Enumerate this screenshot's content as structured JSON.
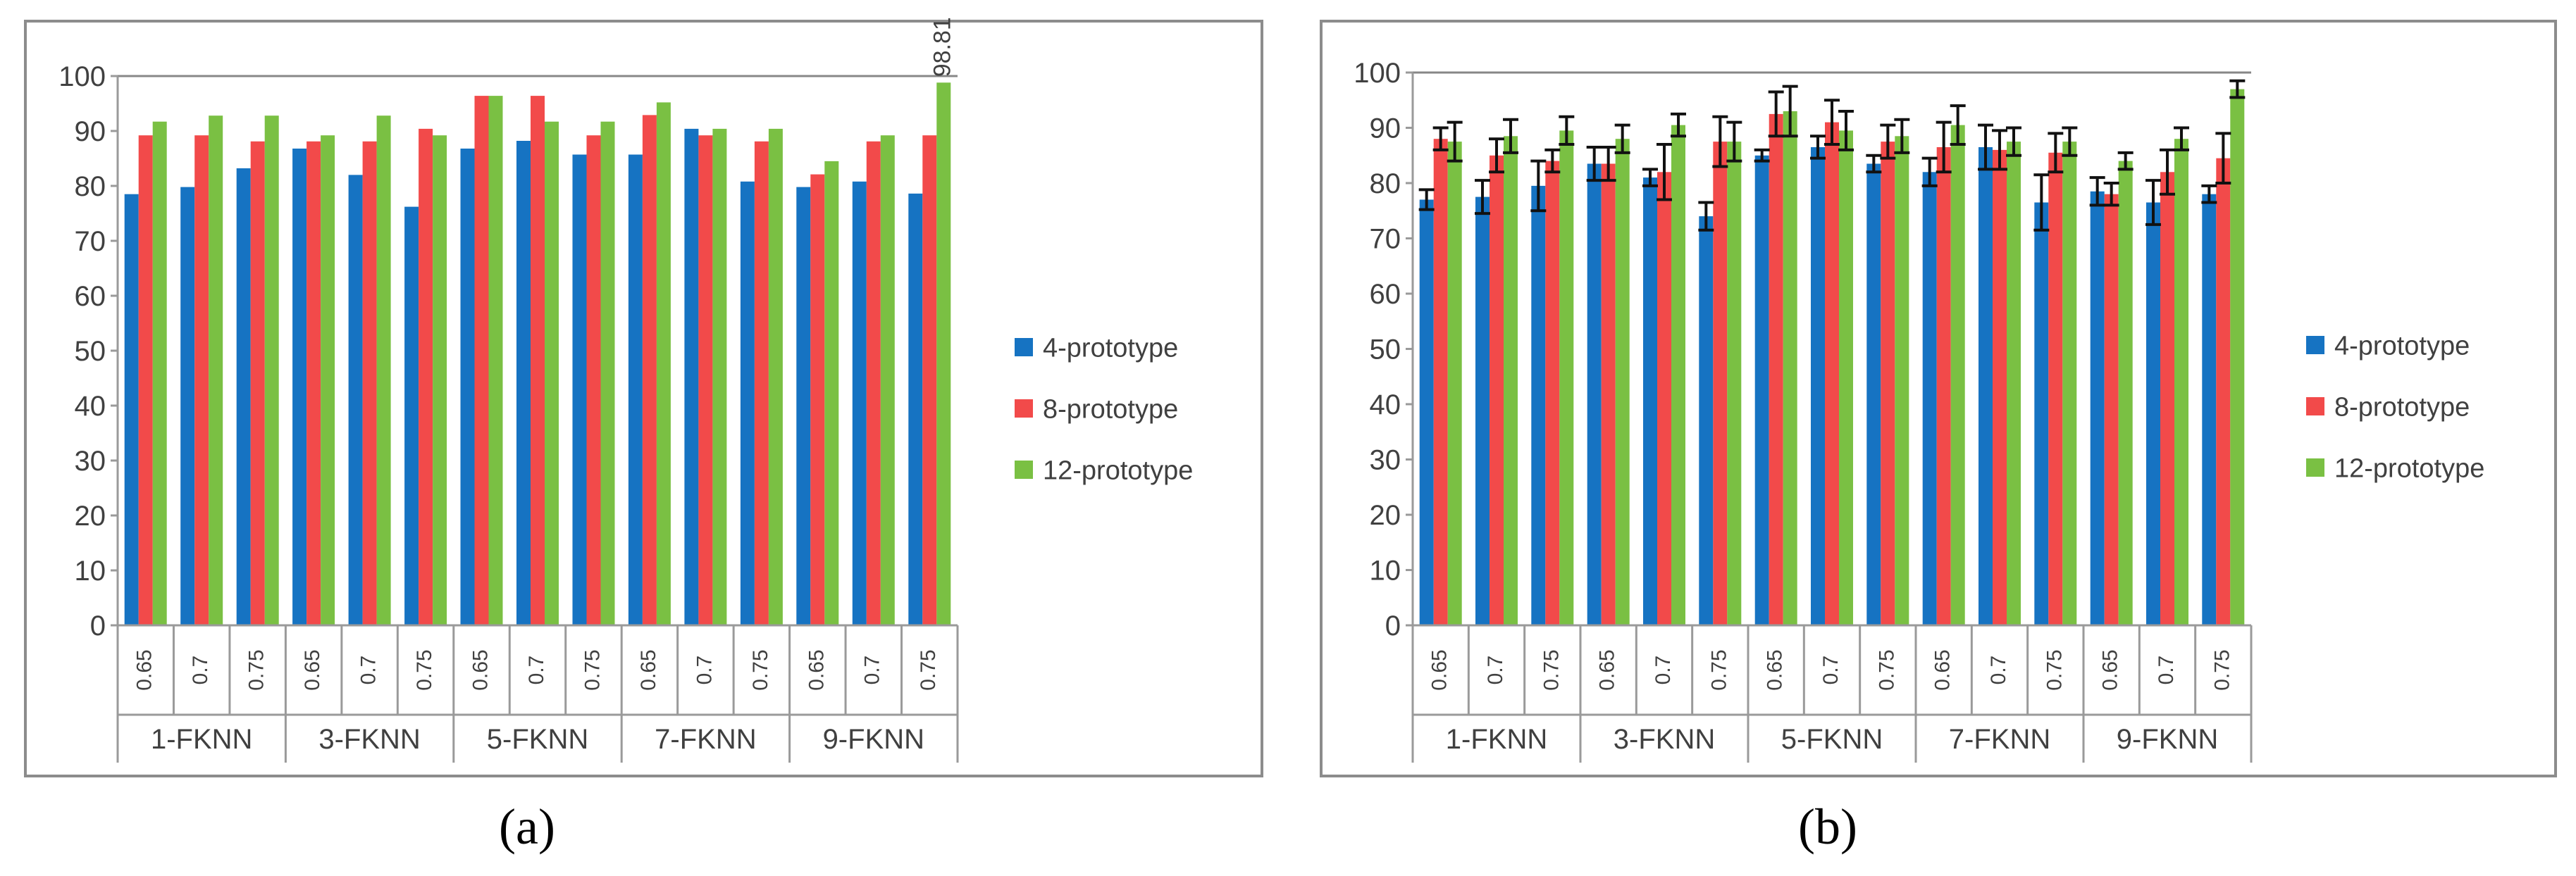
{
  "colors": {
    "series": [
      "#1673c2",
      "#f24a4a",
      "#7ac043"
    ],
    "grid": "#878787",
    "frame": "#8c8c8c",
    "axis": "#9a9a9a",
    "text": "#404040"
  },
  "chart_data": [
    {
      "type": "bar",
      "panel_label": "(a)",
      "title": "",
      "xlabel": "",
      "ylabel": "",
      "ylim": [
        0,
        100
      ],
      "yticks": [
        0,
        10,
        20,
        30,
        40,
        50,
        60,
        70,
        80,
        90,
        100
      ],
      "grid": false,
      "top_line": true,
      "legend_position": "right",
      "groups": [
        "1-FKNN",
        "3-FKNN",
        "5-FKNN",
        "7-FKNN",
        "9-FKNN"
      ],
      "categories": [
        "0.65",
        "0.7",
        "0.75",
        "0.65",
        "0.7",
        "0.75",
        "0.65",
        "0.7",
        "0.75",
        "0.65",
        "0.7",
        "0.75",
        "0.65",
        "0.7",
        "0.75"
      ],
      "series": [
        {
          "name": "4-prototype",
          "values": [
            78.5,
            79.8,
            83.2,
            86.8,
            82.0,
            76.2,
            86.8,
            88.2,
            85.7,
            85.7,
            90.4,
            80.8,
            79.8,
            80.8,
            78.6
          ]
        },
        {
          "name": "8-prototype",
          "values": [
            89.2,
            89.2,
            88.1,
            88.1,
            88.1,
            90.4,
            96.4,
            96.4,
            89.2,
            92.9,
            89.2,
            88.1,
            82.1,
            88.1,
            89.2
          ]
        },
        {
          "name": "12-prototype",
          "values": [
            91.7,
            92.8,
            92.8,
            89.2,
            92.8,
            89.2,
            96.4,
            91.7,
            91.7,
            95.2,
            90.4,
            90.4,
            84.5,
            89.2,
            98.81
          ]
        }
      ],
      "annotations": [
        {
          "text": "98.81",
          "category_index": 14,
          "series": "12-prototype"
        }
      ]
    },
    {
      "type": "bar",
      "panel_label": "(b)",
      "title": "",
      "xlabel": "",
      "ylabel": "",
      "ylim": [
        0,
        100
      ],
      "yticks": [
        0,
        10,
        20,
        30,
        40,
        50,
        60,
        70,
        80,
        90,
        100
      ],
      "grid": false,
      "top_line": true,
      "error_bars": true,
      "legend_position": "right",
      "groups": [
        "1-FKNN",
        "3-FKNN",
        "5-FKNN",
        "7-FKNN",
        "9-FKNN"
      ],
      "categories": [
        "0.65",
        "0.7",
        "0.75",
        "0.65",
        "0.7",
        "0.75",
        "0.65",
        "0.7",
        "0.75",
        "0.65",
        "0.7",
        "0.75",
        "0.65",
        "0.7",
        "0.75"
      ],
      "series": [
        {
          "name": "4-prototype",
          "values": [
            77.0,
            77.5,
            79.5,
            83.5,
            81.0,
            74.0,
            85.0,
            86.5,
            83.5,
            82.0,
            86.5,
            76.5,
            78.5,
            76.5,
            78.0
          ],
          "errors": [
            1.8,
            3.0,
            4.5,
            3.0,
            1.5,
            2.5,
            1.0,
            2.0,
            1.5,
            2.5,
            4.0,
            5.0,
            2.5,
            4.0,
            1.5
          ]
        },
        {
          "name": "8-prototype",
          "values": [
            88.0,
            85.0,
            84.0,
            83.5,
            82.0,
            87.5,
            92.5,
            91.0,
            87.5,
            86.5,
            86.0,
            85.5,
            78.0,
            82.0,
            84.5
          ],
          "errors": [
            2.0,
            3.0,
            2.0,
            3.0,
            5.0,
            4.5,
            4.0,
            4.0,
            3.0,
            4.5,
            3.5,
            3.5,
            2.0,
            4.0,
            4.5
          ]
        },
        {
          "name": "12-prototype",
          "values": [
            87.5,
            88.5,
            89.5,
            88.0,
            90.5,
            87.5,
            93.0,
            89.5,
            88.5,
            90.5,
            87.5,
            87.5,
            84.0,
            88.0,
            97.0
          ],
          "errors": [
            3.5,
            3.0,
            2.5,
            2.5,
            2.0,
            3.5,
            4.5,
            3.5,
            3.0,
            3.5,
            2.5,
            2.5,
            1.5,
            2.0,
            1.5
          ]
        }
      ]
    }
  ]
}
